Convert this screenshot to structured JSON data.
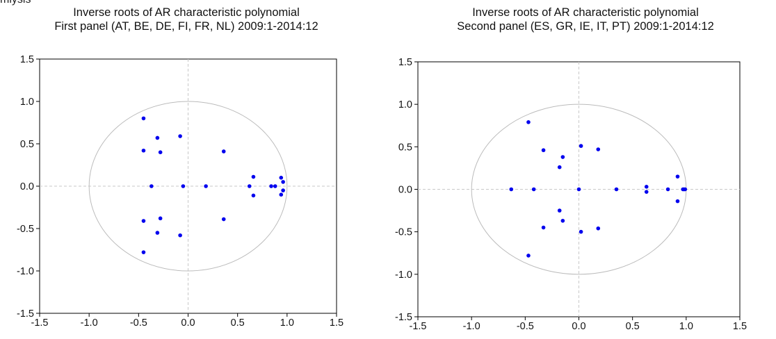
{
  "page": {
    "header_fragment": "mlysis"
  },
  "chart_data": [
    {
      "type": "scatter",
      "title": "Inverse roots of AR characteristic polynomial",
      "subtitle": "First panel (AT, BE, DE, FI, FR, NL) 2009:1-2014:12",
      "xlim": [
        -1.5,
        1.5
      ],
      "ylim": [
        -1.5,
        1.5
      ],
      "xticks": [
        "-1.5",
        "-1.0",
        "-0.5",
        "0.0",
        "0.5",
        "1.0",
        "1.5"
      ],
      "yticks": [
        "1.5",
        "1.0",
        "0.5",
        "0.0",
        "-0.5",
        "-1.0",
        "-1.5"
      ],
      "unit_circle": true,
      "zero_lines": true,
      "point_color": "#0000ee",
      "circle_color": "#bbbbbb",
      "points": [
        [
          -0.45,
          0.8
        ],
        [
          -0.45,
          -0.78
        ],
        [
          -0.45,
          0.42
        ],
        [
          -0.45,
          -0.41
        ],
        [
          -0.31,
          0.57
        ],
        [
          -0.31,
          -0.55
        ],
        [
          -0.28,
          0.4
        ],
        [
          -0.28,
          -0.38
        ],
        [
          -0.08,
          0.59
        ],
        [
          -0.08,
          -0.58
        ],
        [
          -0.37,
          0.0
        ],
        [
          -0.05,
          0.0
        ],
        [
          0.18,
          0.0
        ],
        [
          0.36,
          0.41
        ],
        [
          0.36,
          -0.39
        ],
        [
          0.66,
          0.11
        ],
        [
          0.66,
          -0.11
        ],
        [
          0.62,
          0.0
        ],
        [
          0.84,
          0.0
        ],
        [
          0.88,
          0.0
        ],
        [
          0.94,
          0.1
        ],
        [
          0.94,
          -0.1
        ],
        [
          0.96,
          0.05
        ],
        [
          0.96,
          -0.05
        ]
      ]
    },
    {
      "type": "scatter",
      "title": "Inverse roots of AR characteristic polynomial",
      "subtitle": "Second panel (ES, GR, IE, IT, PT) 2009:1-2014:12",
      "xlim": [
        -1.5,
        1.5
      ],
      "ylim": [
        -1.5,
        1.5
      ],
      "xticks": [
        "-1.5",
        "-1.0",
        "-0.5",
        "0.0",
        "0.5",
        "1.0",
        "1.5"
      ],
      "yticks": [
        "1.5",
        "1.0",
        "0.5",
        "0.0",
        "-0.5",
        "-1.0",
        "-1.5"
      ],
      "unit_circle": true,
      "zero_lines": true,
      "point_color": "#0000ee",
      "circle_color": "#bbbbbb",
      "points": [
        [
          -0.47,
          0.79
        ],
        [
          -0.47,
          -0.78
        ],
        [
          -0.33,
          0.46
        ],
        [
          -0.33,
          -0.45
        ],
        [
          -0.15,
          0.38
        ],
        [
          -0.15,
          -0.37
        ],
        [
          -0.18,
          0.26
        ],
        [
          -0.18,
          -0.25
        ],
        [
          0.02,
          0.51
        ],
        [
          0.02,
          -0.5
        ],
        [
          0.18,
          0.47
        ],
        [
          0.18,
          -0.46
        ],
        [
          -0.63,
          0.0
        ],
        [
          -0.42,
          0.0
        ],
        [
          0.0,
          0.0
        ],
        [
          0.35,
          0.0
        ],
        [
          0.63,
          0.03
        ],
        [
          0.63,
          -0.03
        ],
        [
          0.83,
          0.0
        ],
        [
          0.97,
          0.0
        ],
        [
          0.98,
          0.0
        ],
        [
          0.99,
          0.0
        ],
        [
          0.92,
          0.15
        ],
        [
          0.92,
          -0.14
        ]
      ]
    }
  ]
}
